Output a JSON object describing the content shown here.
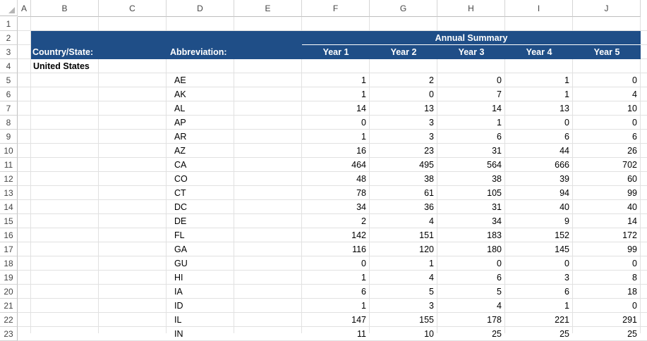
{
  "columns": [
    "A",
    "B",
    "C",
    "D",
    "E",
    "F",
    "G",
    "H",
    "I",
    "J"
  ],
  "rows": [
    "1",
    "2",
    "3",
    "4",
    "5",
    "6",
    "7",
    "8",
    "9",
    "10",
    "11",
    "12",
    "13",
    "14",
    "15",
    "16",
    "17",
    "18",
    "19",
    "20",
    "21",
    "22",
    "23"
  ],
  "header": {
    "group_title": "Annual Summary",
    "country_label": "Country/State:",
    "abbr_label": "Abbreviation:",
    "years": [
      "Year 1",
      "Year 2",
      "Year 3",
      "Year 4",
      "Year 5"
    ]
  },
  "header_color": "#1f4e87",
  "country": "United States",
  "states": [
    {
      "abbr": "AE",
      "vals": [
        "1",
        "2",
        "0",
        "1",
        "0"
      ]
    },
    {
      "abbr": "AK",
      "vals": [
        "1",
        "0",
        "7",
        "1",
        "4"
      ]
    },
    {
      "abbr": "AL",
      "vals": [
        "14",
        "13",
        "14",
        "13",
        "10"
      ]
    },
    {
      "abbr": "AP",
      "vals": [
        "0",
        "3",
        "1",
        "0",
        "0"
      ]
    },
    {
      "abbr": "AR",
      "vals": [
        "1",
        "3",
        "6",
        "6",
        "6"
      ]
    },
    {
      "abbr": "AZ",
      "vals": [
        "16",
        "23",
        "31",
        "44",
        "26"
      ]
    },
    {
      "abbr": "CA",
      "vals": [
        "464",
        "495",
        "564",
        "666",
        "702"
      ]
    },
    {
      "abbr": "CO",
      "vals": [
        "48",
        "38",
        "38",
        "39",
        "60"
      ]
    },
    {
      "abbr": "CT",
      "vals": [
        "78",
        "61",
        "105",
        "94",
        "99"
      ]
    },
    {
      "abbr": "DC",
      "vals": [
        "34",
        "36",
        "31",
        "40",
        "40"
      ]
    },
    {
      "abbr": "DE",
      "vals": [
        "2",
        "4",
        "34",
        "9",
        "14"
      ]
    },
    {
      "abbr": "FL",
      "vals": [
        "142",
        "151",
        "183",
        "152",
        "172"
      ]
    },
    {
      "abbr": "GA",
      "vals": [
        "116",
        "120",
        "180",
        "145",
        "99"
      ]
    },
    {
      "abbr": "GU",
      "vals": [
        "0",
        "1",
        "0",
        "0",
        "0"
      ]
    },
    {
      "abbr": "HI",
      "vals": [
        "1",
        "4",
        "6",
        "3",
        "8"
      ]
    },
    {
      "abbr": "IA",
      "vals": [
        "6",
        "5",
        "5",
        "6",
        "18"
      ]
    },
    {
      "abbr": "ID",
      "vals": [
        "1",
        "3",
        "4",
        "1",
        "0"
      ]
    },
    {
      "abbr": "IL",
      "vals": [
        "147",
        "155",
        "178",
        "221",
        "291"
      ]
    },
    {
      "abbr": "IN",
      "vals": [
        "11",
        "10",
        "25",
        "25",
        "25"
      ]
    }
  ]
}
